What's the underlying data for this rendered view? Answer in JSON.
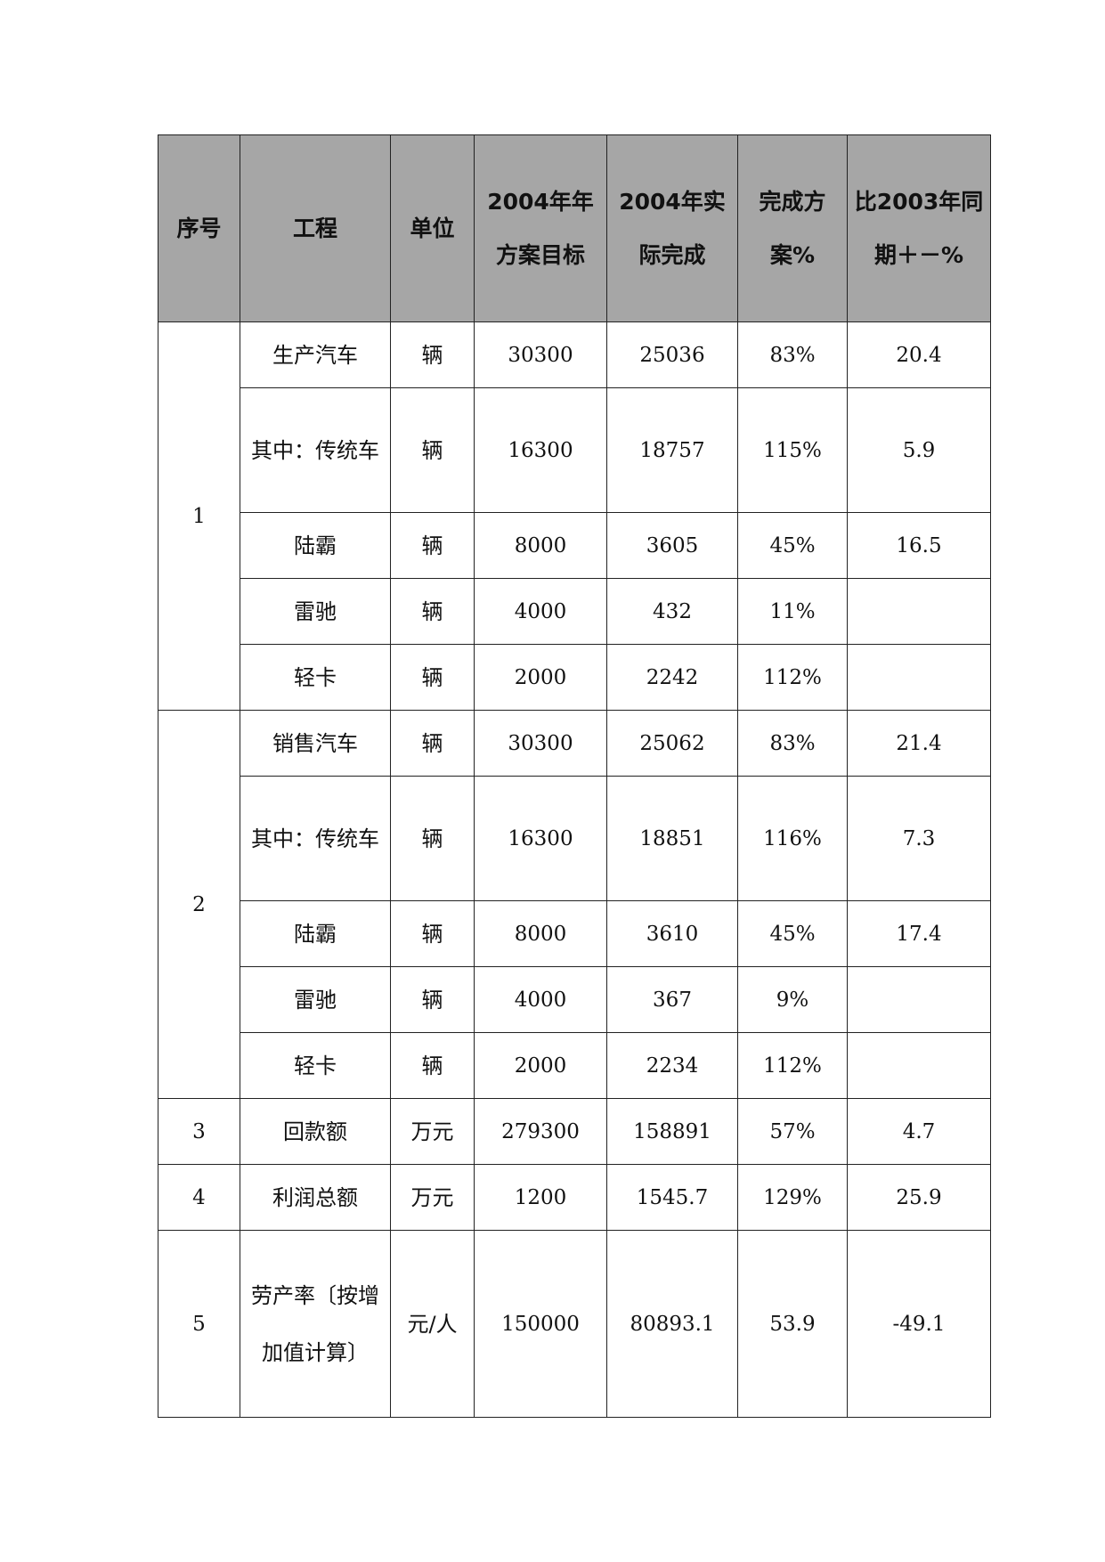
{
  "headers": [
    "序号",
    "工程",
    "单位",
    "2004年年方案目标",
    "2004年实际完成",
    "完成方案%",
    "比2003年同期＋－%"
  ],
  "groups": [
    {
      "no": "1",
      "rows": [
        {
          "item": "生产汽车",
          "unit": "辆",
          "target": "30300",
          "actual": "25036",
          "pct": "83%",
          "yoy": "20.4"
        },
        {
          "item": "其中：传统车",
          "unit": "辆",
          "target": "16300",
          "actual": "18757",
          "pct": "115%",
          "yoy": "5.9"
        },
        {
          "item": "陆霸",
          "unit": "辆",
          "target": "8000",
          "actual": "3605",
          "pct": "45%",
          "yoy": "16.5"
        },
        {
          "item": "雷驰",
          "unit": "辆",
          "target": "4000",
          "actual": "432",
          "pct": "11%",
          "yoy": ""
        },
        {
          "item": "轻卡",
          "unit": "辆",
          "target": "2000",
          "actual": "2242",
          "pct": "112%",
          "yoy": ""
        }
      ]
    },
    {
      "no": "2",
      "rows": [
        {
          "item": "销售汽车",
          "unit": "辆",
          "target": "30300",
          "actual": "25062",
          "pct": "83%",
          "yoy": "21.4"
        },
        {
          "item": "其中：传统车",
          "unit": "辆",
          "target": "16300",
          "actual": "18851",
          "pct": "116%",
          "yoy": "7.3"
        },
        {
          "item": "陆霸",
          "unit": "辆",
          "target": "8000",
          "actual": "3610",
          "pct": "45%",
          "yoy": "17.4"
        },
        {
          "item": "雷驰",
          "unit": "辆",
          "target": "4000",
          "actual": "367",
          "pct": "9%",
          "yoy": ""
        },
        {
          "item": "轻卡",
          "unit": "辆",
          "target": "2000",
          "actual": "2234",
          "pct": "112%",
          "yoy": ""
        }
      ]
    },
    {
      "no": "3",
      "rows": [
        {
          "item": "回款额",
          "unit": "万元",
          "target": "279300",
          "actual": "158891",
          "pct": "57%",
          "yoy": "4.7"
        }
      ]
    },
    {
      "no": "4",
      "rows": [
        {
          "item": "利润总额",
          "unit": "万元",
          "target": "1200",
          "actual": "1545.7",
          "pct": "129%",
          "yoy": "25.9"
        }
      ]
    },
    {
      "no": "5",
      "rows": [
        {
          "item": "劳产率〔按增加值计算〕",
          "unit": "元/人",
          "target": "150000",
          "actual": "80893.1",
          "pct": "53.9",
          "yoy": "-49.1"
        }
      ]
    }
  ]
}
